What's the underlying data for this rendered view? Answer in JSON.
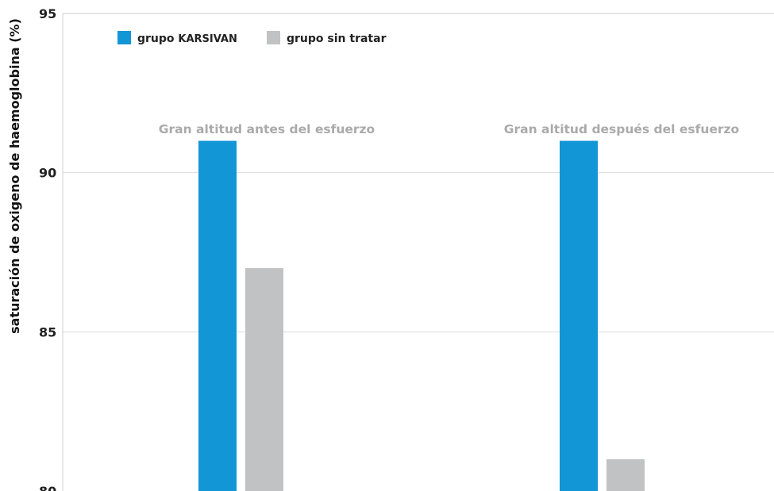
{
  "chart_data": {
    "type": "bar",
    "title": "",
    "xlabel": "",
    "ylabel": "saturación de oxigeno de haemoglobina (%)",
    "ylim": [
      80,
      95
    ],
    "yticks": [
      80,
      85,
      90,
      95
    ],
    "grid": true,
    "legend_position": "top-left",
    "categories": [
      "Gran altitud antes del esfuerzo",
      "Gran altitud después del esfuerzo"
    ],
    "series": [
      {
        "name_prefix": "grupo ",
        "name_emph": "KARSIVAN",
        "color": "#1396d6",
        "values": [
          91,
          91
        ]
      },
      {
        "name_prefix": "grupo sin tratar",
        "name_emph": "",
        "color": "#c1c2c4",
        "values": [
          87,
          81
        ]
      }
    ]
  }
}
